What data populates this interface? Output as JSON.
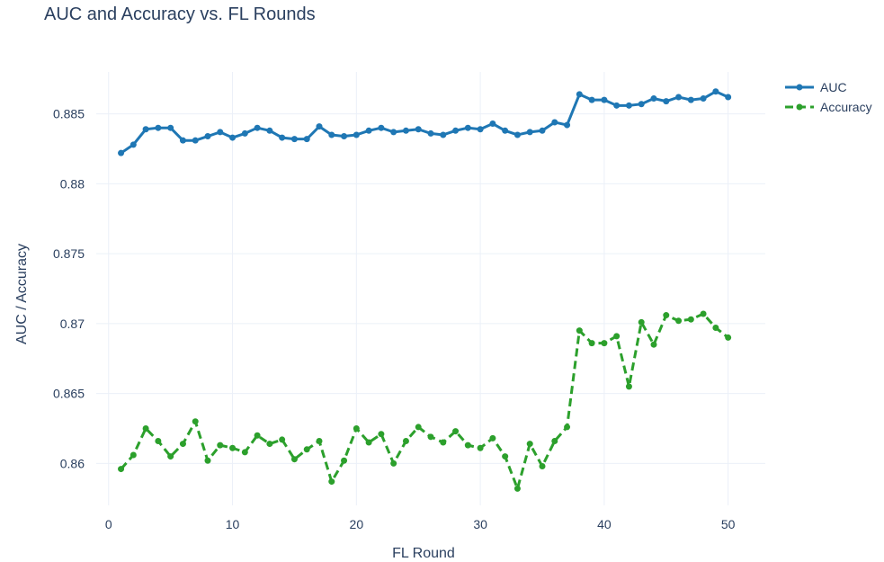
{
  "chart_data": {
    "type": "line",
    "title": "AUC and Accuracy vs. FL Rounds",
    "xlabel": "FL Round",
    "ylabel": "AUC / Accuracy",
    "xlim": [
      -1,
      53
    ],
    "ylim": [
      0.857,
      0.888
    ],
    "x_ticks": [
      0,
      10,
      20,
      30,
      40,
      50
    ],
    "y_ticks": [
      0.86,
      0.865,
      0.87,
      0.875,
      0.88,
      0.885
    ],
    "y_tick_labels": [
      "0.86",
      "0.865",
      "0.87",
      "0.875",
      "0.88",
      "0.885"
    ],
    "grid": true,
    "legend_position": "top-right",
    "x": [
      1,
      2,
      3,
      4,
      5,
      6,
      7,
      8,
      9,
      10,
      11,
      12,
      13,
      14,
      15,
      16,
      17,
      18,
      19,
      20,
      21,
      22,
      23,
      24,
      25,
      26,
      27,
      28,
      29,
      30,
      31,
      32,
      33,
      34,
      35,
      36,
      37,
      38,
      39,
      40,
      41,
      42,
      43,
      44,
      45,
      46,
      47,
      48,
      49,
      50
    ],
    "series": [
      {
        "name": "AUC",
        "color": "#1f77b4",
        "line_style": "solid",
        "values": [
          0.8822,
          0.8828,
          0.8839,
          0.884,
          0.884,
          0.8831,
          0.8831,
          0.8834,
          0.8837,
          0.8833,
          0.8836,
          0.884,
          0.8838,
          0.8833,
          0.8832,
          0.8832,
          0.8841,
          0.8835,
          0.8834,
          0.8835,
          0.8838,
          0.884,
          0.8837,
          0.8838,
          0.8839,
          0.8836,
          0.8835,
          0.8838,
          0.884,
          0.8839,
          0.8843,
          0.8838,
          0.8835,
          0.8837,
          0.8838,
          0.8844,
          0.8842,
          0.8864,
          0.886,
          0.886,
          0.8856,
          0.8856,
          0.8857,
          0.8861,
          0.8859,
          0.8862,
          0.886,
          0.8861,
          0.8866,
          0.8862
        ]
      },
      {
        "name": "Accuracy",
        "color": "#2ca02c",
        "line_style": "dash",
        "values": [
          0.8596,
          0.8606,
          0.8625,
          0.8616,
          0.8605,
          0.8614,
          0.863,
          0.8602,
          0.8613,
          0.8611,
          0.8608,
          0.862,
          0.8614,
          0.8617,
          0.8603,
          0.861,
          0.8616,
          0.8587,
          0.8602,
          0.8625,
          0.8615,
          0.8621,
          0.86,
          0.8616,
          0.8626,
          0.8619,
          0.8615,
          0.8623,
          0.8613,
          0.8611,
          0.8618,
          0.8605,
          0.8582,
          0.8614,
          0.8598,
          0.8616,
          0.8626,
          0.8695,
          0.8686,
          0.8686,
          0.8691,
          0.8655,
          0.8701,
          0.8685,
          0.8706,
          0.8702,
          0.8703,
          0.8707,
          0.8697,
          0.869
        ]
      }
    ]
  }
}
